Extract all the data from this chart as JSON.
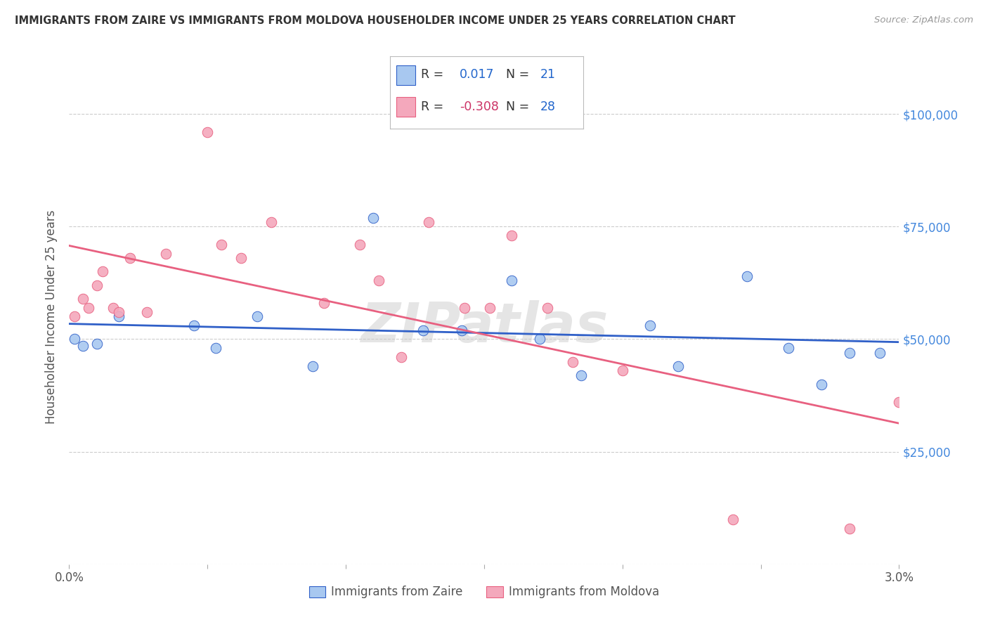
{
  "title": "IMMIGRANTS FROM ZAIRE VS IMMIGRANTS FROM MOLDOVA HOUSEHOLDER INCOME UNDER 25 YEARS CORRELATION CHART",
  "source": "Source: ZipAtlas.com",
  "ylabel": "Householder Income Under 25 years",
  "xlim": [
    0.0,
    3.0
  ],
  "ylim": [
    0,
    110000
  ],
  "yticks": [
    0,
    25000,
    50000,
    75000,
    100000
  ],
  "ytick_labels": [
    "",
    "$25,000",
    "$50,000",
    "$75,000",
    "$100,000"
  ],
  "xticks": [
    0.0,
    0.5,
    1.0,
    1.5,
    2.0,
    2.5,
    3.0
  ],
  "xtick_labels": [
    "0.0%",
    "",
    "",
    "",
    "",
    "",
    "3.0%"
  ],
  "r_zaire": 0.017,
  "n_zaire": 21,
  "r_moldova": -0.308,
  "n_moldova": 28,
  "color_zaire": "#A8C8F0",
  "color_moldova": "#F4A8BC",
  "line_color_zaire": "#3060C8",
  "line_color_moldova": "#E86080",
  "watermark": "ZIPatlas",
  "zaire_x": [
    0.02,
    0.05,
    0.1,
    0.18,
    0.45,
    0.53,
    0.68,
    0.88,
    1.1,
    1.28,
    1.42,
    1.6,
    1.7,
    1.85,
    2.1,
    2.2,
    2.45,
    2.6,
    2.72,
    2.82,
    2.93
  ],
  "zaire_y": [
    50000,
    48500,
    49000,
    55000,
    53000,
    48000,
    55000,
    44000,
    77000,
    52000,
    52000,
    63000,
    50000,
    42000,
    53000,
    44000,
    64000,
    48000,
    40000,
    47000,
    47000
  ],
  "moldova_x": [
    0.02,
    0.05,
    0.07,
    0.1,
    0.12,
    0.16,
    0.18,
    0.22,
    0.28,
    0.35,
    0.5,
    0.55,
    0.62,
    0.73,
    0.92,
    1.05,
    1.12,
    1.2,
    1.3,
    1.43,
    1.52,
    1.6,
    1.73,
    1.82,
    2.0,
    2.4,
    2.82,
    3.0
  ],
  "moldova_y": [
    55000,
    59000,
    57000,
    62000,
    65000,
    57000,
    56000,
    68000,
    56000,
    69000,
    96000,
    71000,
    68000,
    76000,
    58000,
    71000,
    63000,
    46000,
    76000,
    57000,
    57000,
    73000,
    57000,
    45000,
    43000,
    10000,
    8000,
    36000
  ],
  "bg_color": "#FFFFFF",
  "grid_color": "#CCCCCC",
  "title_color": "#333333",
  "axis_label_color": "#555555",
  "right_ytick_color": "#4488DD",
  "marker_size": 110,
  "legend_color_blue": "#2266CC",
  "legend_color_red": "#CC3366"
}
